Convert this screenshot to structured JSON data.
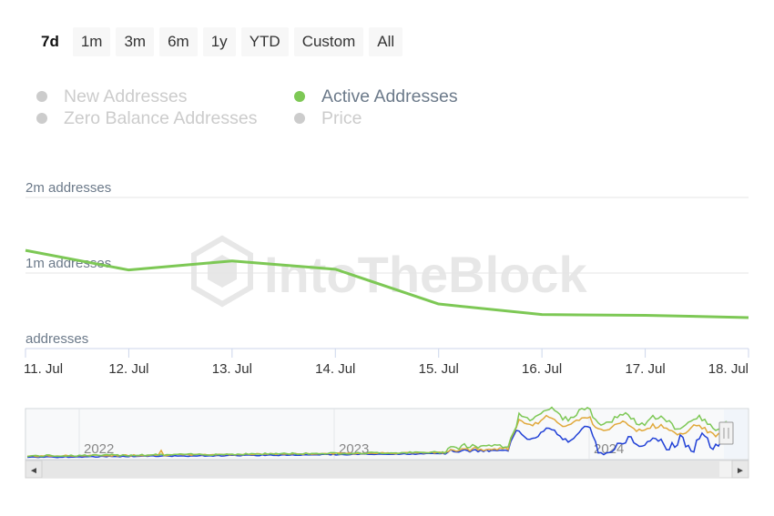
{
  "range_selector": {
    "buttons": [
      "7d",
      "1m",
      "3m",
      "6m",
      "1y",
      "YTD",
      "Custom",
      "All"
    ],
    "active": "7d"
  },
  "legend": {
    "items": [
      {
        "label": "New Addresses",
        "active": false
      },
      {
        "label": "Active Addresses",
        "active": true
      },
      {
        "label": "Zero Balance Addresses",
        "active": false
      },
      {
        "label": "Price",
        "active": false
      }
    ]
  },
  "watermark": "IntoTheBlock",
  "colors": {
    "active_series": "#7dc855",
    "inactive_legend": "#cccccc",
    "axis_label": "#6c7a8a",
    "navigator_blue": "#1f3fd6",
    "navigator_orange": "#e0a83a",
    "navigator_green": "#7dc855"
  },
  "chart_data": {
    "type": "line",
    "x": [
      "11. Jul",
      "12. Jul",
      "13. Jul",
      "14. Jul",
      "15. Jul",
      "16. Jul",
      "17. Jul",
      "18. Jul"
    ],
    "series": [
      {
        "name": "Active Addresses",
        "values": [
          1300000,
          1040000,
          1160000,
          1050000,
          590000,
          450000,
          440000,
          410000
        ]
      }
    ],
    "y_tick_labels": [
      "addresses",
      "1m addresses",
      "2m addresses"
    ],
    "ylim": [
      0,
      2000000
    ],
    "grid": true,
    "legend_position": "top"
  },
  "navigator": {
    "year_labels": [
      "2022",
      "2023",
      "2024"
    ],
    "scroll_left": "◄",
    "scroll_right": "►"
  }
}
